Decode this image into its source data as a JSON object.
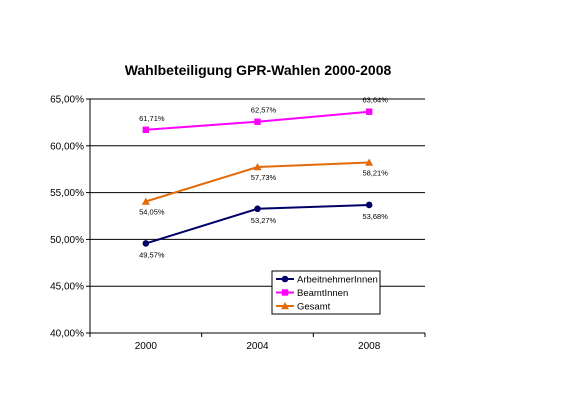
{
  "chart_data": {
    "type": "line",
    "title": "Wahlbeteiligung GPR-Wahlen 2000-2008",
    "categories": [
      "2000",
      "2004",
      "2008"
    ],
    "ylim": [
      40,
      65
    ],
    "yticks": [
      "40,00%",
      "45,00%",
      "50,00%",
      "55,00%",
      "60,00%",
      "65,00%"
    ],
    "grid": true,
    "legend_position": "bottom-right",
    "series": [
      {
        "name": "ArbeitnehmerInnen",
        "values": [
          49.57,
          53.27,
          53.68
        ],
        "labels": [
          "49,57%",
          "53,27%",
          "53,68%"
        ],
        "color": "#000066",
        "marker": "circle"
      },
      {
        "name": "BeamtInnen",
        "values": [
          61.71,
          62.57,
          63.64
        ],
        "labels": [
          "61,71%",
          "62,57%",
          "63,64%"
        ],
        "color": "#ff00ff",
        "marker": "square"
      },
      {
        "name": "Gesamt",
        "values": [
          54.05,
          57.73,
          58.21
        ],
        "labels": [
          "54,05%",
          "57,73%",
          "58,21%"
        ],
        "color": "#e36c0a",
        "marker": "triangle"
      }
    ]
  }
}
